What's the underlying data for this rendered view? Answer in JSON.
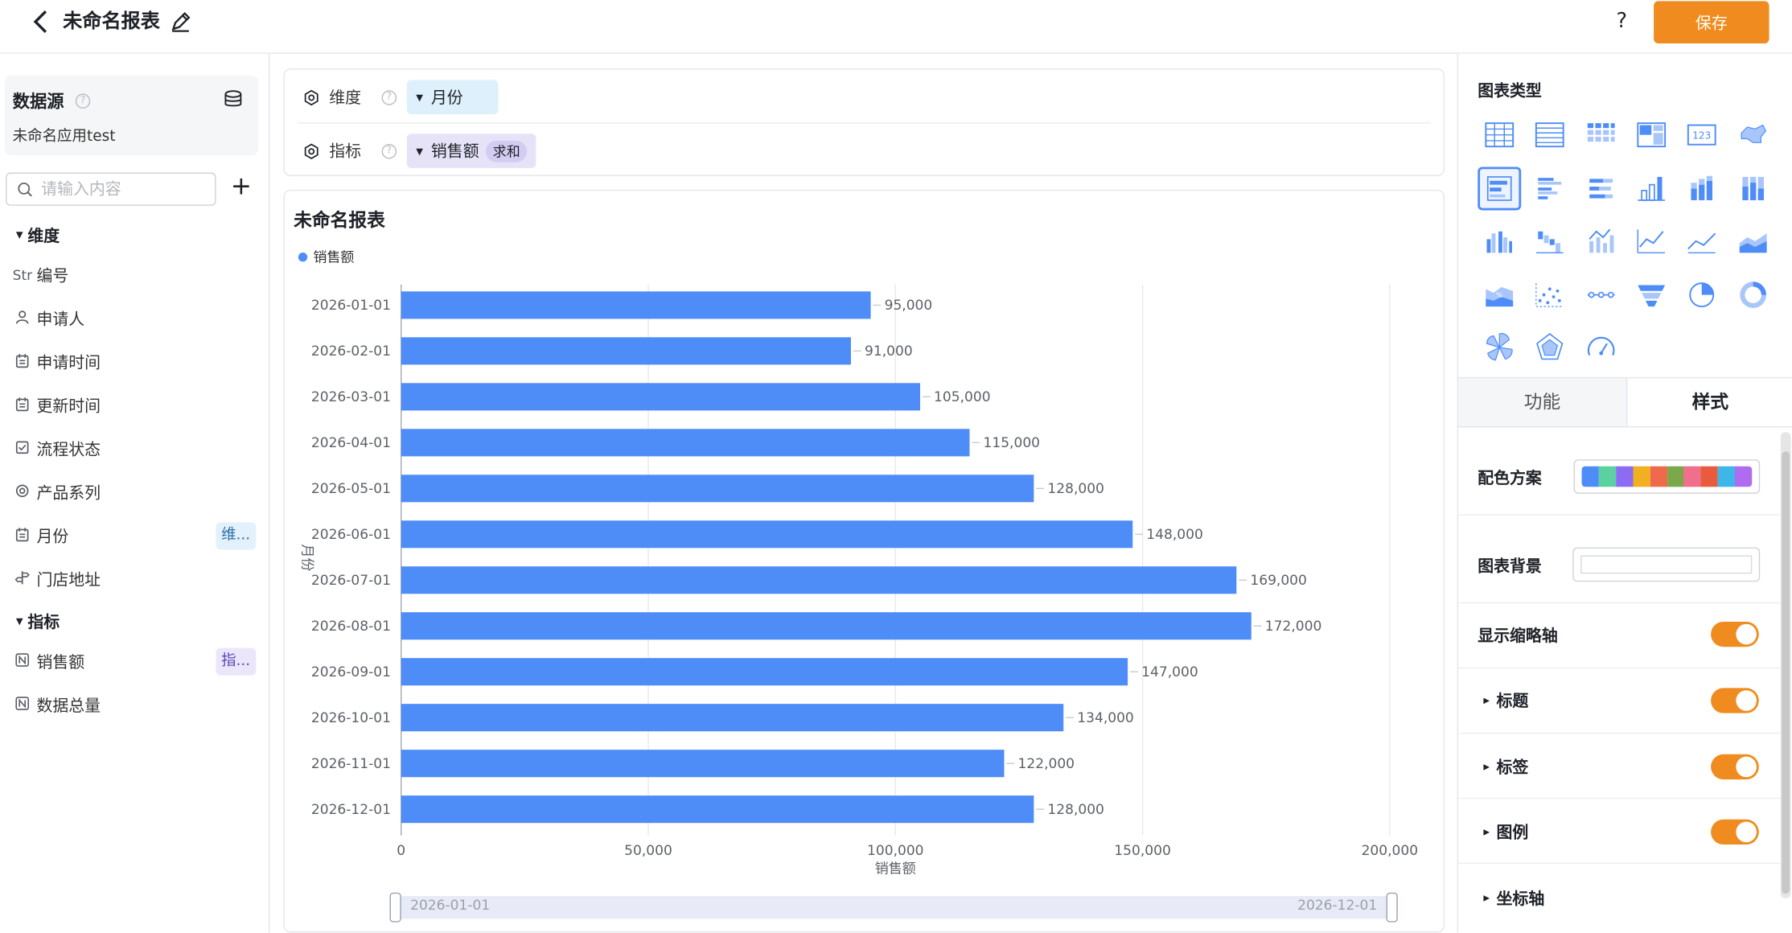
{
  "header": {
    "title": "未命名报表",
    "help_label": "?",
    "save_label": "保存"
  },
  "datasource": {
    "title": "数据源",
    "name": "未命名应用test",
    "help": "?"
  },
  "search": {
    "placeholder": "请输入内容",
    "add_label": "+"
  },
  "dimensions": {
    "title": "维度",
    "items": [
      {
        "icon": "Str",
        "label": "编号",
        "tag": ""
      },
      {
        "icon": "person-icon",
        "label": "申请人",
        "tag": ""
      },
      {
        "icon": "calendar-icon",
        "label": "申请时间",
        "tag": ""
      },
      {
        "icon": "calendar-icon",
        "label": "更新时间",
        "tag": ""
      },
      {
        "icon": "checkbox-icon",
        "label": "流程状态",
        "tag": ""
      },
      {
        "icon": "radio-icon",
        "label": "产品系列",
        "tag": ""
      },
      {
        "icon": "calendar-icon",
        "label": "月份",
        "tag": "维..."
      },
      {
        "icon": "signpost-icon",
        "label": "门店地址",
        "tag": ""
      }
    ]
  },
  "indicators": {
    "title": "指标",
    "items": [
      {
        "icon": "number-icon",
        "label": "销售额",
        "tag": "指..."
      },
      {
        "icon": "number-icon",
        "label": "数据总量",
        "tag": ""
      }
    ]
  },
  "config": {
    "dimension_label": "维度",
    "dimension_value": "月份",
    "indicator_label": "指标",
    "indicator_value": "销售额",
    "indicator_agg": "求和",
    "help": "?"
  },
  "chart": {
    "title": "未命名报表",
    "legend": "销售额",
    "zoom_start": "2026-01-01",
    "zoom_end": "2026-12-01",
    "bar_color": "#4e8df7"
  },
  "chart_data": {
    "type": "bar",
    "orientation": "horizontal",
    "title": "未命名报表",
    "xlabel": "销售额",
    "ylabel": "月份",
    "xlim": [
      0,
      200000
    ],
    "xticks": [
      "0",
      "50,000",
      "100,000",
      "150,000",
      "200,000"
    ],
    "grid": true,
    "legend_position": "top-left",
    "categories": [
      "2026-01-01",
      "2026-02-01",
      "2026-03-01",
      "2026-04-01",
      "2026-05-01",
      "2026-06-01",
      "2026-07-01",
      "2026-08-01",
      "2026-09-01",
      "2026-10-01",
      "2026-11-01",
      "2026-12-01"
    ],
    "series": [
      {
        "name": "销售额",
        "values": [
          95000,
          91000,
          105000,
          115000,
          128000,
          148000,
          169000,
          172000,
          147000,
          134000,
          122000,
          128000
        ]
      }
    ],
    "data_labels": [
      "95,000",
      "91,000",
      "105,000",
      "115,000",
      "128,000",
      "148,000",
      "169,000",
      "172,000",
      "147,000",
      "134,000",
      "122,000",
      "128,000"
    ]
  },
  "right_panel": {
    "chart_types_title": "图表类型",
    "chart_types": [
      "table-icon",
      "detail-table-icon",
      "cross-table-icon",
      "pivot-table-icon",
      "indicator-card-icon",
      "map-icon",
      "horizontal-bar-icon",
      "grouped-bar-icon",
      "stacked-bar-icon",
      "column-icon",
      "stacked-column-icon",
      "percent-column-icon",
      "grouped-column-icon",
      "waterfall-icon",
      "combo-icon",
      "line-icon",
      "area-icon",
      "stacked-area-icon",
      "percent-area-icon",
      "scatter-icon",
      "dot-line-icon",
      "funnel-icon",
      "pie-icon",
      "ring-icon",
      "rose-icon",
      "radar-icon",
      "gauge-icon"
    ],
    "selected_type": "horizontal-bar-icon",
    "tab_function": "功能",
    "tab_style": "样式",
    "palette_label": "配色方案",
    "palette_colors": [
      "#4e8df7",
      "#5bd1a2",
      "#8b6cf3",
      "#f0b01f",
      "#ef6a4c",
      "#7aa84a",
      "#f06f8d",
      "#e85b3c",
      "#3fb6e8",
      "#b06cf0"
    ],
    "background_label": "图表背景",
    "thumbnail_axis_label": "显示缩略轴",
    "title_label": "标题",
    "tag_label": "标签",
    "legend_label": "图例",
    "axis_label": "坐标轴",
    "toggle_color": "#f08c1f"
  }
}
